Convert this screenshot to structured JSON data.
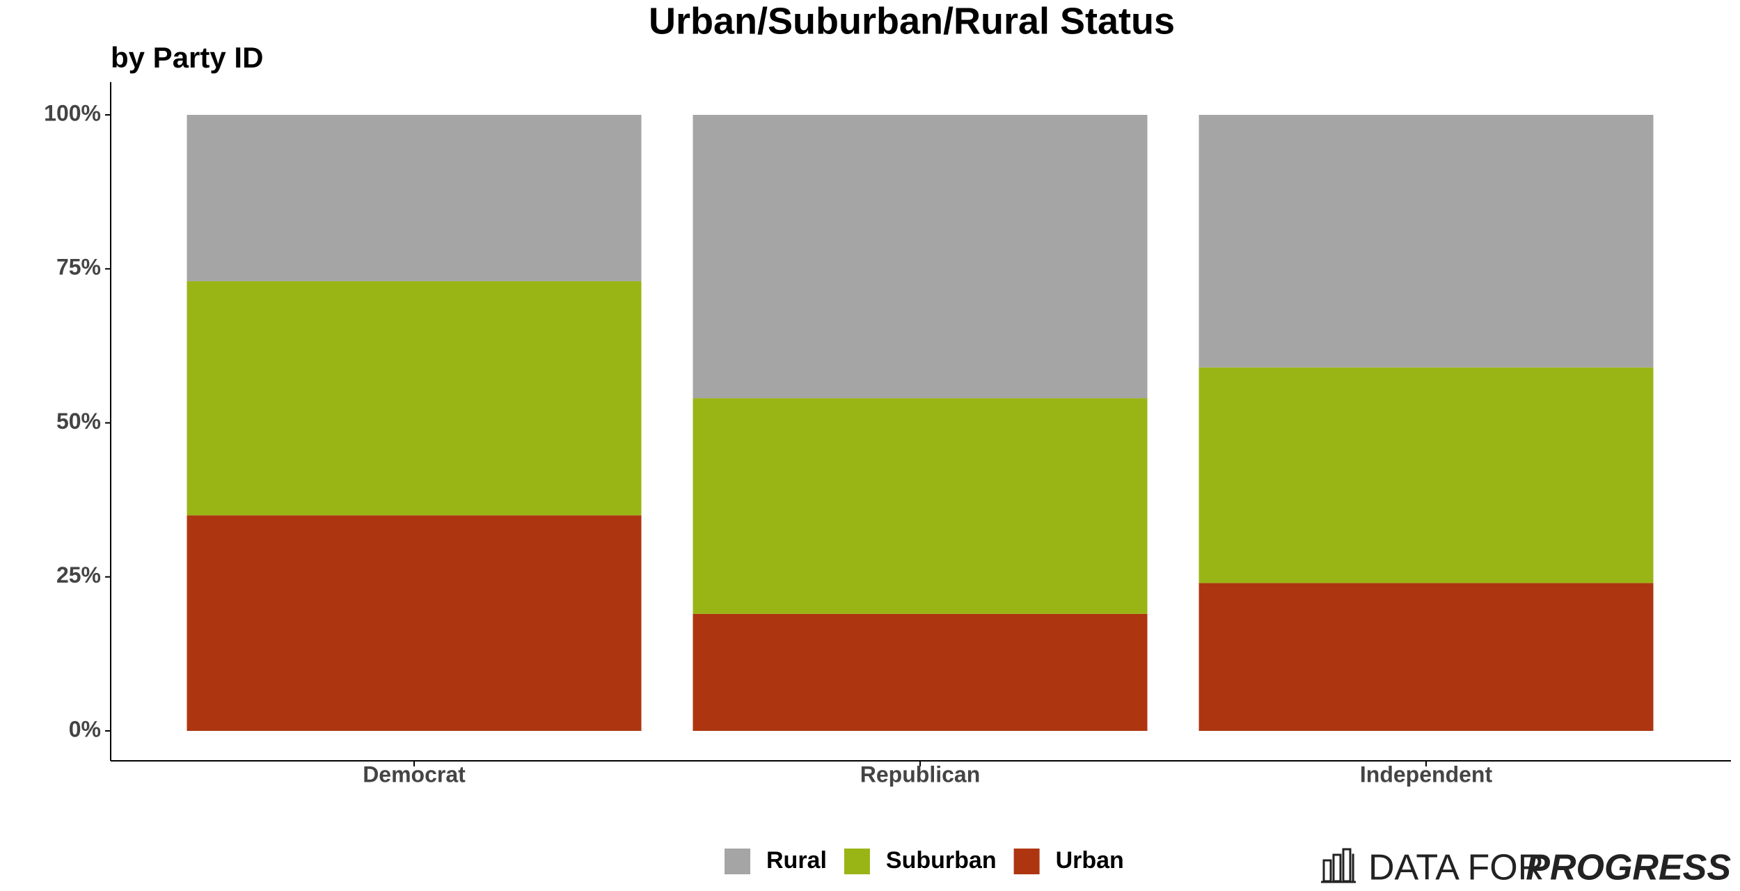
{
  "chart_data": {
    "type": "stacked_bar",
    "title": "Urban/Suburban/Rural Status",
    "subtitle": "by Party ID",
    "categories": [
      "Democrat",
      "Republican",
      "Independent"
    ],
    "series": [
      {
        "name": "Rural",
        "color": "#a5a5a5",
        "values": [
          27,
          46,
          41
        ]
      },
      {
        "name": "Suburban",
        "color": "#99b515",
        "values": [
          38,
          35,
          35
        ]
      },
      {
        "name": "Urban",
        "color": "#ad3611",
        "values": [
          35,
          19,
          24
        ]
      }
    ],
    "ylim": [
      0,
      100
    ],
    "yticks": [
      {
        "value": 0,
        "label": "0%"
      },
      {
        "value": 25,
        "label": "25%"
      },
      {
        "value": 50,
        "label": "50%"
      },
      {
        "value": 75,
        "label": "75%"
      },
      {
        "value": 100,
        "label": "100%"
      }
    ],
    "grid": false,
    "legend": "bottom",
    "logo": {
      "plain": "DATA FOR",
      "bold": "PROGRESS"
    }
  }
}
